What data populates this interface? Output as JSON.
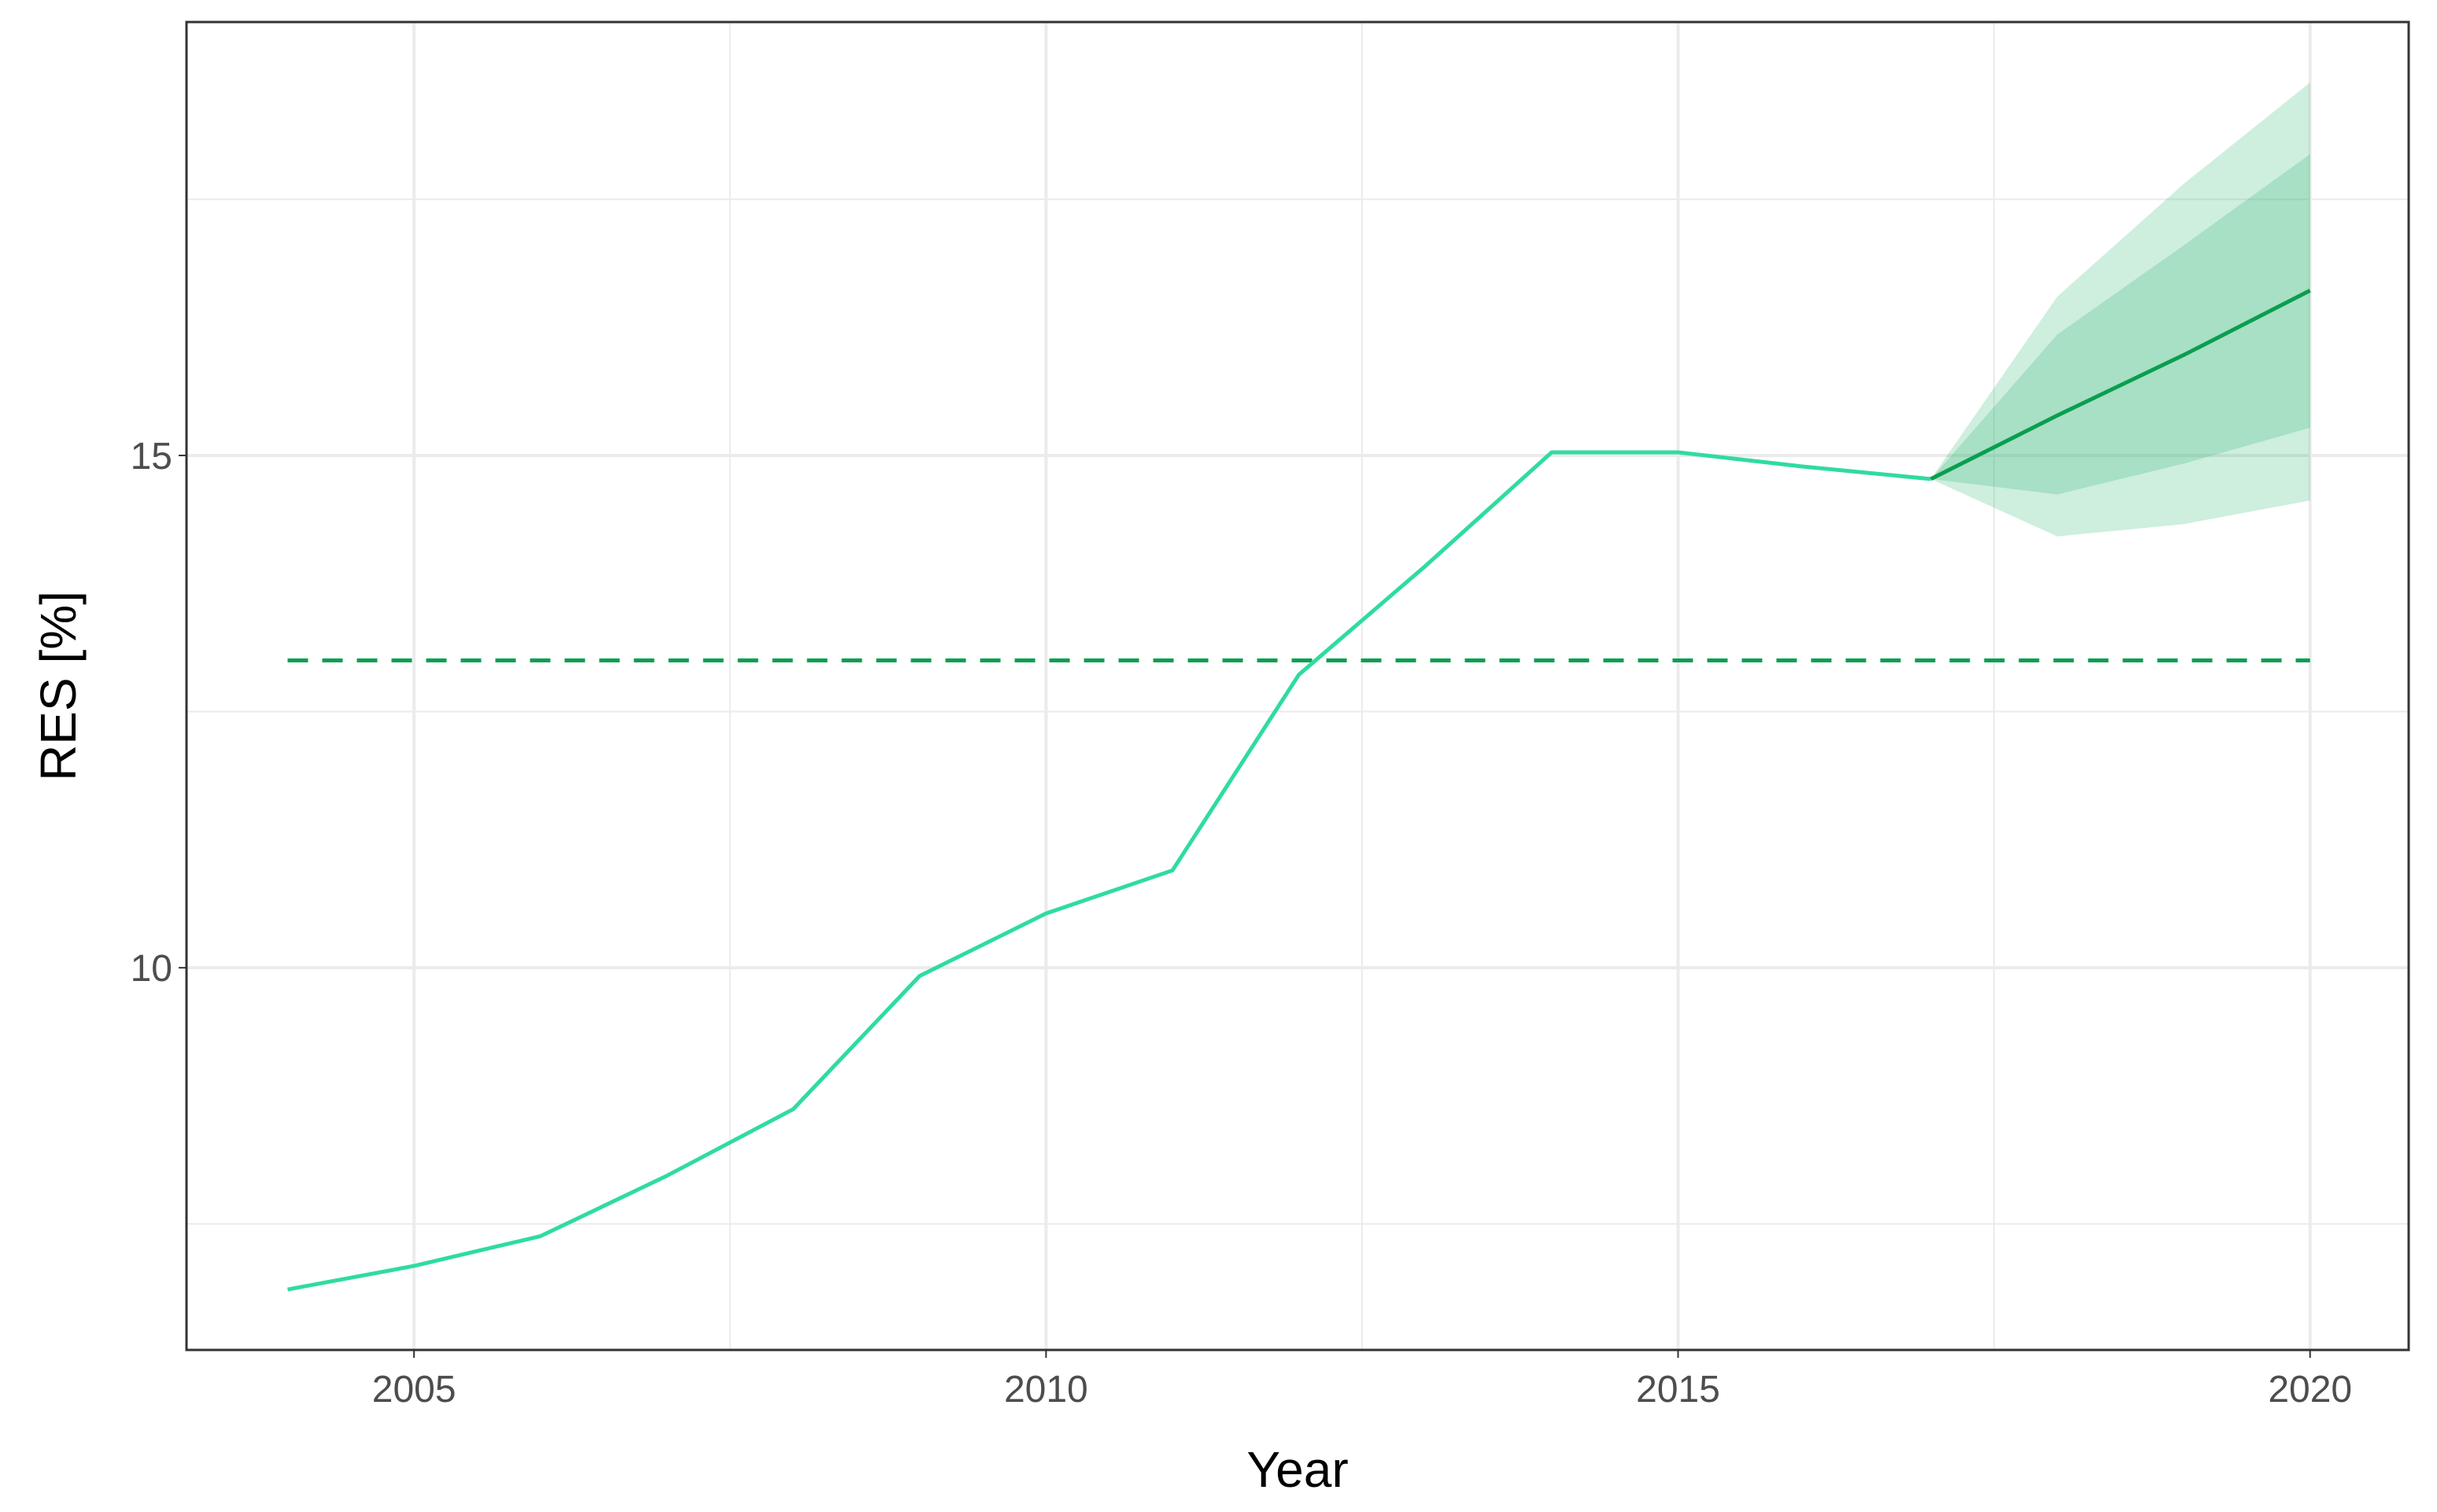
{
  "chart_data": {
    "type": "line",
    "x_label": "Year",
    "y_label": "RES [%]",
    "xlim": [
      2003.2,
      2020.78
    ],
    "ylim": [
      6.27,
      19.23
    ],
    "xticks": [
      2005,
      2010,
      2015,
      2020
    ],
    "yticks": [
      10,
      15
    ],
    "grid": true,
    "series": [
      {
        "color": "#2fdc9e",
        "x": [
          2004,
          2005,
          2006,
          2007,
          2008,
          2009,
          2010,
          2011,
          2012,
          2013,
          2014,
          2015,
          2016,
          2017
        ],
        "values": [
          6.86,
          7.09,
          7.38,
          7.97,
          8.62,
          9.92,
          10.53,
          10.95,
          12.86,
          13.92,
          15.03,
          15.03,
          14.89,
          14.77
        ]
      },
      {
        "color": "#0a9e50",
        "x": [
          2017,
          2018,
          2019,
          2020
        ],
        "values": [
          14.77,
          15.39,
          15.98,
          16.61
        ]
      }
    ],
    "bands": [
      {
        "color": "#1fb36b",
        "x": [
          2017,
          2018,
          2019,
          2020
        ],
        "lower": [
          14.77,
          14.21,
          14.33,
          14.56
        ],
        "upper": [
          14.77,
          16.55,
          17.65,
          18.64
        ]
      },
      {
        "color": "#1fb36b",
        "x": [
          2017,
          2018,
          2019,
          2020
        ],
        "lower": [
          14.77,
          14.62,
          14.92,
          15.27
        ],
        "upper": [
          14.77,
          16.18,
          17.05,
          17.94
        ]
      }
    ],
    "hline": {
      "value": 13,
      "x": [
        2004,
        2020
      ],
      "color": "#0a9e50"
    }
  }
}
